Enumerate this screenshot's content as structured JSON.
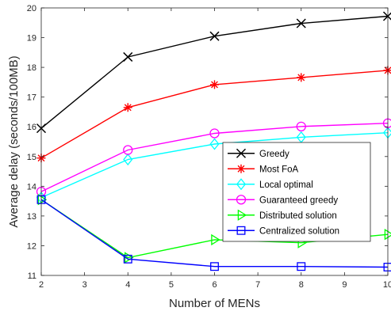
{
  "chart_data": {
    "type": "line",
    "xlabel": "Number of MENs",
    "ylabel": "Average delay (seconds/100MB)",
    "xlim": [
      2,
      10
    ],
    "ylim": [
      11,
      20
    ],
    "x_ticks": [
      "2",
      "3",
      "4",
      "5",
      "6",
      "7",
      "8",
      "9",
      "10"
    ],
    "y_ticks": [
      "11",
      "12",
      "13",
      "14",
      "15",
      "16",
      "17",
      "18",
      "19",
      "20"
    ],
    "grid": false,
    "legend_position": "lower-right",
    "x": [
      2,
      4,
      6,
      8,
      10
    ],
    "series": [
      {
        "name": "Greedy",
        "values": [
          15.95,
          18.35,
          19.05,
          19.48,
          19.72
        ],
        "color": "#000000",
        "marker": "x"
      },
      {
        "name": "Most FoA",
        "values": [
          14.95,
          16.65,
          17.42,
          17.66,
          17.9
        ],
        "color": "#ff0000",
        "marker": "asterisk"
      },
      {
        "name": "Local optimal",
        "values": [
          13.62,
          14.9,
          15.42,
          15.65,
          15.8
        ],
        "color": "#00ffff",
        "marker": "diamond"
      },
      {
        "name": "Guaranteed greedy",
        "values": [
          13.82,
          15.22,
          15.78,
          16.01,
          16.12
        ],
        "color": "#ff00ff",
        "marker": "circle"
      },
      {
        "name": "Distributed solution",
        "values": [
          13.55,
          11.6,
          12.2,
          12.1,
          12.38
        ],
        "color": "#00ff00",
        "marker": "triangle-right"
      },
      {
        "name": "Centralized solution",
        "values": [
          13.55,
          11.55,
          11.3,
          11.3,
          11.28
        ],
        "color": "#0000ff",
        "marker": "square"
      }
    ]
  }
}
